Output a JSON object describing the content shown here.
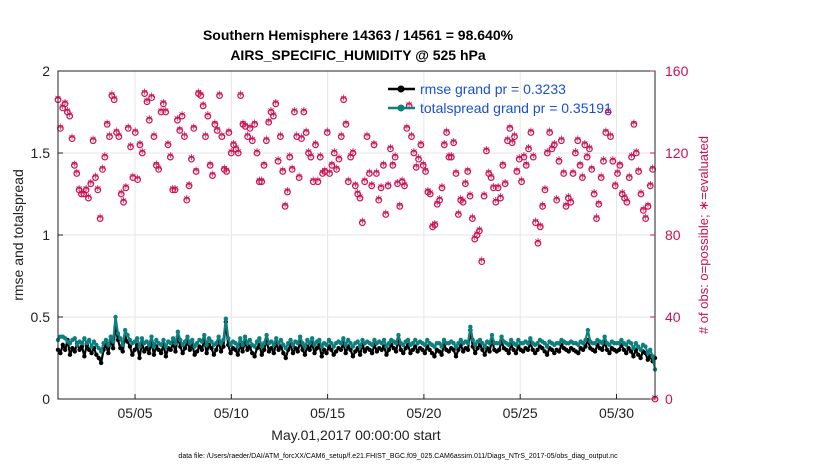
{
  "chart_data": {
    "type": "line",
    "title": "Southern Hemisphere 14363 / 14561 = 98.640%",
    "subtitle": "AIRS_SPECIFIC_HUMIDITY @ 525 hPa",
    "xlabel": "May.01,2017 00:00:00 start",
    "ylabel": "rmse and totalspread",
    "ylabel_right": "# of obs: o=possible; ∗=evaluated",
    "footer": "data file: /Users/raeder/DAI/ATM_forcXX/CAM6_setup/f.e21.FHIST_BGC.f09_025.CAM6assim.011/Diags_NTrS_2017-05/obs_diag_output.nc",
    "xlim": [
      1.0,
      32.0
    ],
    "ylim": [
      0,
      2
    ],
    "ylim_right": [
      0,
      160
    ],
    "xticks": [
      5,
      10,
      15,
      20,
      25,
      30
    ],
    "xtick_labels": [
      "05/05",
      "05/10",
      "05/15",
      "05/20",
      "05/25",
      "05/30"
    ],
    "yticks": [
      0,
      0.5,
      1,
      1.5,
      2
    ],
    "ytick_labels": [
      "0",
      "0.5",
      "1",
      "1.5",
      "2"
    ],
    "yticks_right": [
      0,
      40,
      80,
      120,
      160
    ],
    "ytick_labels_right": [
      "0",
      "40",
      "80",
      "120",
      "160"
    ],
    "legend_position": "top-right",
    "colors": {
      "rmse": "#000000",
      "totalspread": "#0e7f7f",
      "obs": "#cc1155",
      "legend_text": "#1a4fd6",
      "grid": "#e6e6e6"
    },
    "series": [
      {
        "name": "rmse grand pr = 0.3233",
        "values": [
          0.3,
          0.28,
          0.33,
          0.3,
          0.36,
          0.27,
          0.31,
          0.29,
          0.34,
          0.3,
          0.32,
          0.26,
          0.33,
          0.3,
          0.28,
          0.31,
          0.27,
          0.25,
          0.22,
          0.3,
          0.33,
          0.28,
          0.36,
          0.31,
          0.44,
          0.36,
          0.31,
          0.29,
          0.38,
          0.35,
          0.32,
          0.27,
          0.3,
          0.33,
          0.25,
          0.34,
          0.29,
          0.31,
          0.28,
          0.35,
          0.27,
          0.32,
          0.3,
          0.28,
          0.33,
          0.26,
          0.31,
          0.3,
          0.34,
          0.29,
          0.38,
          0.32,
          0.28,
          0.31,
          0.35,
          0.3,
          0.33,
          0.27,
          0.29,
          0.32,
          0.3,
          0.36,
          0.28,
          0.33,
          0.31,
          0.27,
          0.3,
          0.35,
          0.29,
          0.32,
          0.47,
          0.33,
          0.28,
          0.31,
          0.3,
          0.27,
          0.33,
          0.29,
          0.35,
          0.3,
          0.32,
          0.28,
          0.26,
          0.31,
          0.33,
          0.27,
          0.3,
          0.36,
          0.29,
          0.31,
          0.28,
          0.34,
          0.3,
          0.32,
          0.28,
          0.25,
          0.3,
          0.33,
          0.28,
          0.31,
          0.29,
          0.35,
          0.3,
          0.27,
          0.32,
          0.3,
          0.34,
          0.28,
          0.31,
          0.33,
          0.26,
          0.3,
          0.28,
          0.32,
          0.3,
          0.27,
          0.29,
          0.31,
          0.3,
          0.34,
          0.28,
          0.32,
          0.3,
          0.26,
          0.29,
          0.31,
          0.27,
          0.33,
          0.29,
          0.31,
          0.3,
          0.28,
          0.33,
          0.29,
          0.31,
          0.3,
          0.32,
          0.27,
          0.3,
          0.33,
          0.31,
          0.29,
          0.36,
          0.3,
          0.28,
          0.31,
          0.33,
          0.28,
          0.3,
          0.32,
          0.29,
          0.31,
          0.3,
          0.28,
          0.32,
          0.3,
          0.28,
          0.26,
          0.3,
          0.29,
          0.27,
          0.33,
          0.3,
          0.29,
          0.31,
          0.3,
          0.26,
          0.3,
          0.33,
          0.29,
          0.31,
          0.3,
          0.42,
          0.32,
          0.28,
          0.31,
          0.33,
          0.3,
          0.27,
          0.31,
          0.29,
          0.36,
          0.3,
          0.29,
          0.3,
          0.35,
          0.31,
          0.3,
          0.28,
          0.33,
          0.3,
          0.28,
          0.32,
          0.3,
          0.29,
          0.31,
          0.3,
          0.34,
          0.3,
          0.28,
          0.3,
          0.32,
          0.31,
          0.29,
          0.27,
          0.31,
          0.3,
          0.28,
          0.3,
          0.29,
          0.33,
          0.31,
          0.3,
          0.29,
          0.31,
          0.3,
          0.29,
          0.28,
          0.31,
          0.3,
          0.32,
          0.36,
          0.31,
          0.3,
          0.29,
          0.33,
          0.31,
          0.3,
          0.35,
          0.3,
          0.28,
          0.31,
          0.3,
          0.29,
          0.3,
          0.33,
          0.3,
          0.28,
          0.31,
          0.29,
          0.26,
          0.3,
          0.27,
          0.25,
          0.29,
          0.28,
          0.24,
          0.26,
          0.23,
          0.25
        ]
      },
      {
        "name": "totalspread grand pr = 0.35191",
        "values": [
          0.36,
          0.38,
          0.38,
          0.37,
          0.35,
          0.34,
          0.36,
          0.37,
          0.33,
          0.35,
          0.34,
          0.37,
          0.34,
          0.36,
          0.32,
          0.35,
          0.33,
          0.31,
          0.29,
          0.34,
          0.36,
          0.33,
          0.38,
          0.35,
          0.5,
          0.4,
          0.37,
          0.33,
          0.42,
          0.39,
          0.36,
          0.34,
          0.35,
          0.37,
          0.32,
          0.37,
          0.34,
          0.35,
          0.33,
          0.38,
          0.32,
          0.36,
          0.34,
          0.33,
          0.36,
          0.32,
          0.35,
          0.34,
          0.37,
          0.34,
          0.41,
          0.36,
          0.33,
          0.35,
          0.38,
          0.34,
          0.36,
          0.32,
          0.34,
          0.36,
          0.35,
          0.39,
          0.33,
          0.37,
          0.35,
          0.33,
          0.34,
          0.38,
          0.34,
          0.36,
          0.49,
          0.37,
          0.33,
          0.35,
          0.34,
          0.32,
          0.37,
          0.33,
          0.38,
          0.34,
          0.36,
          0.33,
          0.32,
          0.35,
          0.37,
          0.32,
          0.34,
          0.39,
          0.34,
          0.35,
          0.33,
          0.37,
          0.34,
          0.36,
          0.33,
          0.31,
          0.34,
          0.36,
          0.33,
          0.35,
          0.34,
          0.38,
          0.34,
          0.32,
          0.36,
          0.34,
          0.37,
          0.33,
          0.35,
          0.36,
          0.32,
          0.34,
          0.33,
          0.36,
          0.34,
          0.32,
          0.34,
          0.35,
          0.34,
          0.37,
          0.33,
          0.36,
          0.34,
          0.32,
          0.34,
          0.35,
          0.32,
          0.36,
          0.34,
          0.35,
          0.34,
          0.33,
          0.36,
          0.34,
          0.35,
          0.34,
          0.36,
          0.32,
          0.34,
          0.36,
          0.35,
          0.34,
          0.39,
          0.34,
          0.33,
          0.35,
          0.36,
          0.33,
          0.34,
          0.36,
          0.34,
          0.35,
          0.34,
          0.33,
          0.36,
          0.34,
          0.33,
          0.32,
          0.34,
          0.34,
          0.32,
          0.36,
          0.34,
          0.34,
          0.35,
          0.34,
          0.32,
          0.34,
          0.36,
          0.34,
          0.35,
          0.34,
          0.44,
          0.36,
          0.33,
          0.35,
          0.36,
          0.34,
          0.32,
          0.35,
          0.34,
          0.39,
          0.34,
          0.34,
          0.34,
          0.38,
          0.35,
          0.34,
          0.33,
          0.36,
          0.34,
          0.33,
          0.36,
          0.34,
          0.34,
          0.35,
          0.34,
          0.37,
          0.34,
          0.33,
          0.34,
          0.36,
          0.35,
          0.34,
          0.32,
          0.35,
          0.34,
          0.33,
          0.34,
          0.34,
          0.36,
          0.35,
          0.34,
          0.34,
          0.35,
          0.34,
          0.34,
          0.33,
          0.35,
          0.34,
          0.36,
          0.42,
          0.35,
          0.34,
          0.34,
          0.36,
          0.35,
          0.34,
          0.38,
          0.34,
          0.33,
          0.35,
          0.34,
          0.34,
          0.34,
          0.36,
          0.34,
          0.33,
          0.35,
          0.34,
          0.31,
          0.34,
          0.32,
          0.3,
          0.33,
          0.32,
          0.28,
          0.3,
          0.26,
          0.18
        ]
      }
    ],
    "obs_counts": {
      "values": [
        146,
        132,
        142,
        144,
        140,
        138,
        127,
        114,
        110,
        102,
        100,
        100,
        102,
        98,
        105,
        126,
        108,
        102,
        88,
        112,
        118,
        134,
        128,
        148,
        146,
        130,
        128,
        100,
        96,
        103,
        132,
        123,
        108,
        130,
        107,
        124,
        120,
        149,
        145,
        136,
        147,
        128,
        114,
        112,
        140,
        144,
        140,
        124,
        118,
        102,
        102,
        136,
        131,
        138,
        128,
        97,
        104,
        117,
        132,
        111,
        149,
        148,
        143,
        128,
        138,
        114,
        109,
        134,
        131,
        148,
        128,
        112,
        111,
        130,
        120,
        124,
        122,
        120,
        148,
        134,
        133,
        128,
        132,
        126,
        134,
        120,
        106,
        106,
        114,
        126,
        135,
        140,
        138,
        144,
        116,
        128,
        111,
        94,
        101,
        118,
        112,
        140,
        128,
        108,
        127,
        140,
        130,
        120,
        118,
        106,
        124,
        106,
        118,
        110,
        111,
        130,
        110,
        114,
        120,
        112,
        117,
        128,
        146,
        134,
        106,
        118,
        120,
        104,
        100,
        98,
        86,
        106,
        128,
        110,
        104,
        124,
        110,
        97,
        103,
        114,
        90,
        104,
        122,
        114,
        118,
        105,
        94,
        106,
        104,
        132,
        143,
        128,
        120,
        113,
        117,
        124,
        114,
        111,
        101,
        100,
        84,
        85,
        95,
        97,
        103,
        124,
        130,
        118,
        118,
        125,
        110,
        90,
        97,
        96,
        105,
        111,
        99,
        88,
        78,
        80,
        82,
        67,
        99,
        121,
        110,
        108,
        103,
        96,
        103,
        98,
        114,
        105,
        126,
        132,
        125,
        128,
        111,
        117,
        106,
        118,
        114,
        122,
        130,
        118,
        86,
        76,
        84,
        94,
        102,
        120,
        130,
        122,
        124,
        97,
        116,
        126,
        110,
        94,
        98,
        96,
        110,
        120,
        126,
        114,
        108,
        124,
        118,
        122,
        112,
        100,
        88,
        95,
        108,
        116,
        130,
        140,
        128,
        116,
        104,
        110,
        114,
        100,
        98,
        96,
        108,
        118,
        134,
        120,
        111,
        100,
        92,
        88,
        94,
        104,
        112,
        0
      ]
    }
  }
}
